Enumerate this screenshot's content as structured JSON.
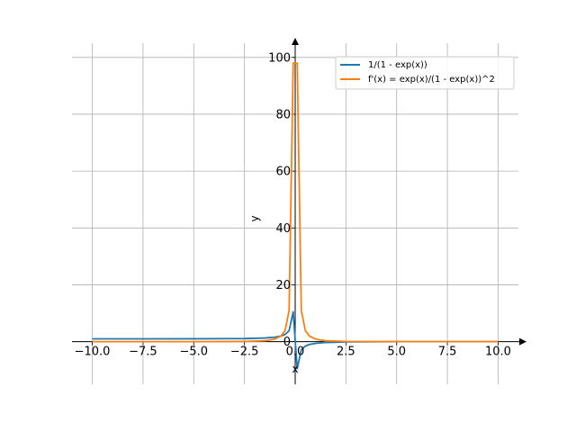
{
  "chart_data": {
    "type": "line",
    "xlabel": "x",
    "ylabel": "y",
    "xlim": [
      -11,
      11
    ],
    "ylim": [
      -15,
      105
    ],
    "grid": true,
    "legend_position": "top-right",
    "x_ticks": [
      {
        "value": -10,
        "label": "−10.0"
      },
      {
        "value": -7.5,
        "label": "−7.5"
      },
      {
        "value": -5,
        "label": "−5.0"
      },
      {
        "value": -2.5,
        "label": "−2.5"
      },
      {
        "value": 0,
        "label": "0.0"
      },
      {
        "value": 2.5,
        "label": "2.5"
      },
      {
        "value": 5,
        "label": "5.0"
      },
      {
        "value": 7.5,
        "label": "7.5"
      },
      {
        "value": 10,
        "label": "10.0"
      }
    ],
    "y_ticks": [
      {
        "value": 0,
        "label": "0"
      },
      {
        "value": 20,
        "label": "20"
      },
      {
        "value": 40,
        "label": "40"
      },
      {
        "value": 60,
        "label": "60"
      },
      {
        "value": 80,
        "label": "80"
      },
      {
        "value": 100,
        "label": "100"
      }
    ],
    "series": [
      {
        "name": "1/(1 - exp(x))",
        "color": "#1f77b4",
        "points": [
          [
            -10,
            1.0
          ],
          [
            -7.5,
            1.0
          ],
          [
            -5,
            1.01
          ],
          [
            -2.5,
            1.09
          ],
          [
            -1.5,
            1.29
          ],
          [
            -1.0,
            1.58
          ],
          [
            -0.7,
            1.99
          ],
          [
            -0.5,
            2.54
          ],
          [
            -0.3,
            3.86
          ],
          [
            -0.1,
            10.5
          ],
          [
            0.1,
            -9.5
          ],
          [
            0.3,
            -2.86
          ],
          [
            0.5,
            -1.54
          ],
          [
            0.7,
            -0.99
          ],
          [
            1.0,
            -0.58
          ],
          [
            1.5,
            -0.29
          ],
          [
            2.5,
            -0.09
          ],
          [
            5,
            -0.01
          ],
          [
            7.5,
            0
          ],
          [
            10,
            0
          ]
        ]
      },
      {
        "name": "f'(x) = exp(x)/(1 - exp(x))^2",
        "color": "#ff7f0e",
        "points": [
          [
            -10,
            0
          ],
          [
            -5,
            0.01
          ],
          [
            -2.5,
            0.09
          ],
          [
            -1.5,
            0.29
          ],
          [
            -1.0,
            0.92
          ],
          [
            -0.7,
            2.0
          ],
          [
            -0.5,
            3.9
          ],
          [
            -0.3,
            11.0
          ],
          [
            -0.1,
            98
          ],
          [
            0.1,
            98
          ],
          [
            0.3,
            11.0
          ],
          [
            0.5,
            3.9
          ],
          [
            0.7,
            2.0
          ],
          [
            1.0,
            0.92
          ],
          [
            1.5,
            0.29
          ],
          [
            2.5,
            0.09
          ],
          [
            5,
            0.01
          ],
          [
            10,
            0
          ]
        ]
      }
    ]
  }
}
